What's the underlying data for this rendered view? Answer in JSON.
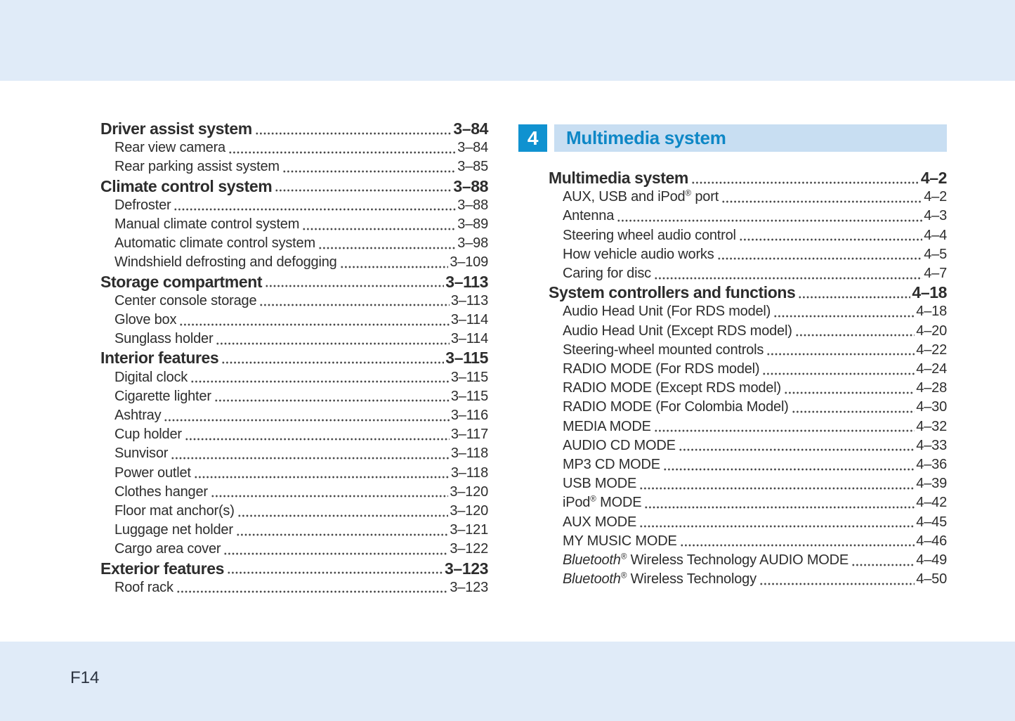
{
  "page": {
    "footer_label": "F14",
    "colors": {
      "band": "#e0ebf8",
      "header_band": "#c8def2",
      "chapter_blue": "#1092d0",
      "title_blue": "#0e87c6",
      "text": "#2d2d2d"
    }
  },
  "left_column": {
    "entries": [
      {
        "label": "Driver assist system",
        "page": "3–84",
        "level": 1
      },
      {
        "label": "Rear view camera",
        "page": "3–84",
        "level": 2
      },
      {
        "label": "Rear parking assist system",
        "page": "3–85",
        "level": 2
      },
      {
        "label": "Climate control system",
        "page": "3–88",
        "level": 1
      },
      {
        "label": "Defroster",
        "page": "3–88",
        "level": 2
      },
      {
        "label": "Manual climate control system",
        "page": "3–89",
        "level": 2
      },
      {
        "label": "Automatic climate control system",
        "page": "3–98",
        "level": 2
      },
      {
        "label": "Windshield defrosting and defogging",
        "page": "3–109",
        "level": 2
      },
      {
        "label": "Storage compartment",
        "page": "3–113",
        "level": 1
      },
      {
        "label": "Center console storage",
        "page": "3–113",
        "level": 2
      },
      {
        "label": "Glove box",
        "page": "3–114",
        "level": 2
      },
      {
        "label": "Sunglass holder",
        "page": "3–114",
        "level": 2
      },
      {
        "label": "Interior features",
        "page": "3–115",
        "level": 1
      },
      {
        "label": "Digital clock",
        "page": "3–115",
        "level": 2
      },
      {
        "label": "Cigarette lighter",
        "page": "3–115",
        "level": 2
      },
      {
        "label": "Ashtray",
        "page": "3–116",
        "level": 2
      },
      {
        "label": "Cup holder",
        "page": "3–117",
        "level": 2
      },
      {
        "label": "Sunvisor",
        "page": "3–118",
        "level": 2
      },
      {
        "label": "Power outlet",
        "page": "3–118",
        "level": 2
      },
      {
        "label": "Clothes hanger",
        "page": "3–120",
        "level": 2
      },
      {
        "label": "Floor mat anchor(s)",
        "page": "3–120",
        "level": 2
      },
      {
        "label": "Luggage net holder",
        "page": "3–121",
        "level": 2
      },
      {
        "label": "Cargo area cover",
        "page": "3–122",
        "level": 2
      },
      {
        "label": "Exterior features",
        "page": "3–123",
        "level": 1
      },
      {
        "label": "Roof rack",
        "page": "3–123",
        "level": 2
      }
    ]
  },
  "right_column": {
    "chapter_number": "4",
    "chapter_title": "Multimedia system",
    "entries": [
      {
        "label": "Multimedia system",
        "page": "4–2",
        "level": 1
      },
      {
        "label": "AUX, USB and iPod® port",
        "page": "4–2",
        "level": 2
      },
      {
        "label": "Antenna",
        "page": "4–3",
        "level": 2
      },
      {
        "label": "Steering wheel audio control",
        "page": "4–4",
        "level": 2
      },
      {
        "label": "How vehicle audio works",
        "page": "4–5",
        "level": 2
      },
      {
        "label": "Caring for disc",
        "page": "4–7",
        "level": 2
      },
      {
        "label": "System controllers and functions",
        "page": "4–18",
        "level": 1
      },
      {
        "label": "Audio Head Unit (For RDS model)",
        "page": "4–18",
        "level": 2
      },
      {
        "label": "Audio Head Unit (Except RDS model)",
        "page": "4–20",
        "level": 2
      },
      {
        "label": "Steering-wheel mounted controls",
        "page": "4–22",
        "level": 2
      },
      {
        "label": "RADIO MODE (For RDS model)",
        "page": "4–24",
        "level": 2
      },
      {
        "label": "RADIO MODE (Except RDS model)",
        "page": "4–28",
        "level": 2
      },
      {
        "label": "RADIO MODE (For Colombia Model)",
        "page": "4–30",
        "level": 2
      },
      {
        "label": "MEDIA MODE",
        "page": "4–32",
        "level": 2
      },
      {
        "label": "AUDIO CD MODE",
        "page": "4–33",
        "level": 2
      },
      {
        "label": "MP3 CD MODE",
        "page": "4–36",
        "level": 2
      },
      {
        "label": "USB MODE",
        "page": "4–39",
        "level": 2
      },
      {
        "label": "iPod® MODE",
        "page": "4–42",
        "level": 2
      },
      {
        "label": "AUX MODE",
        "page": "4–45",
        "level": 2
      },
      {
        "label": "MY MUSIC MODE",
        "page": "4–46",
        "level": 2
      },
      {
        "label": "Bluetooth® Wireless Technology AUDIO MODE",
        "page": "4–49",
        "level": 2,
        "italic_prefix": "Bluetooth®"
      },
      {
        "label": "Bluetooth® Wireless Technology",
        "page": "4–50",
        "level": 2,
        "italic_prefix": "Bluetooth®"
      }
    ]
  }
}
